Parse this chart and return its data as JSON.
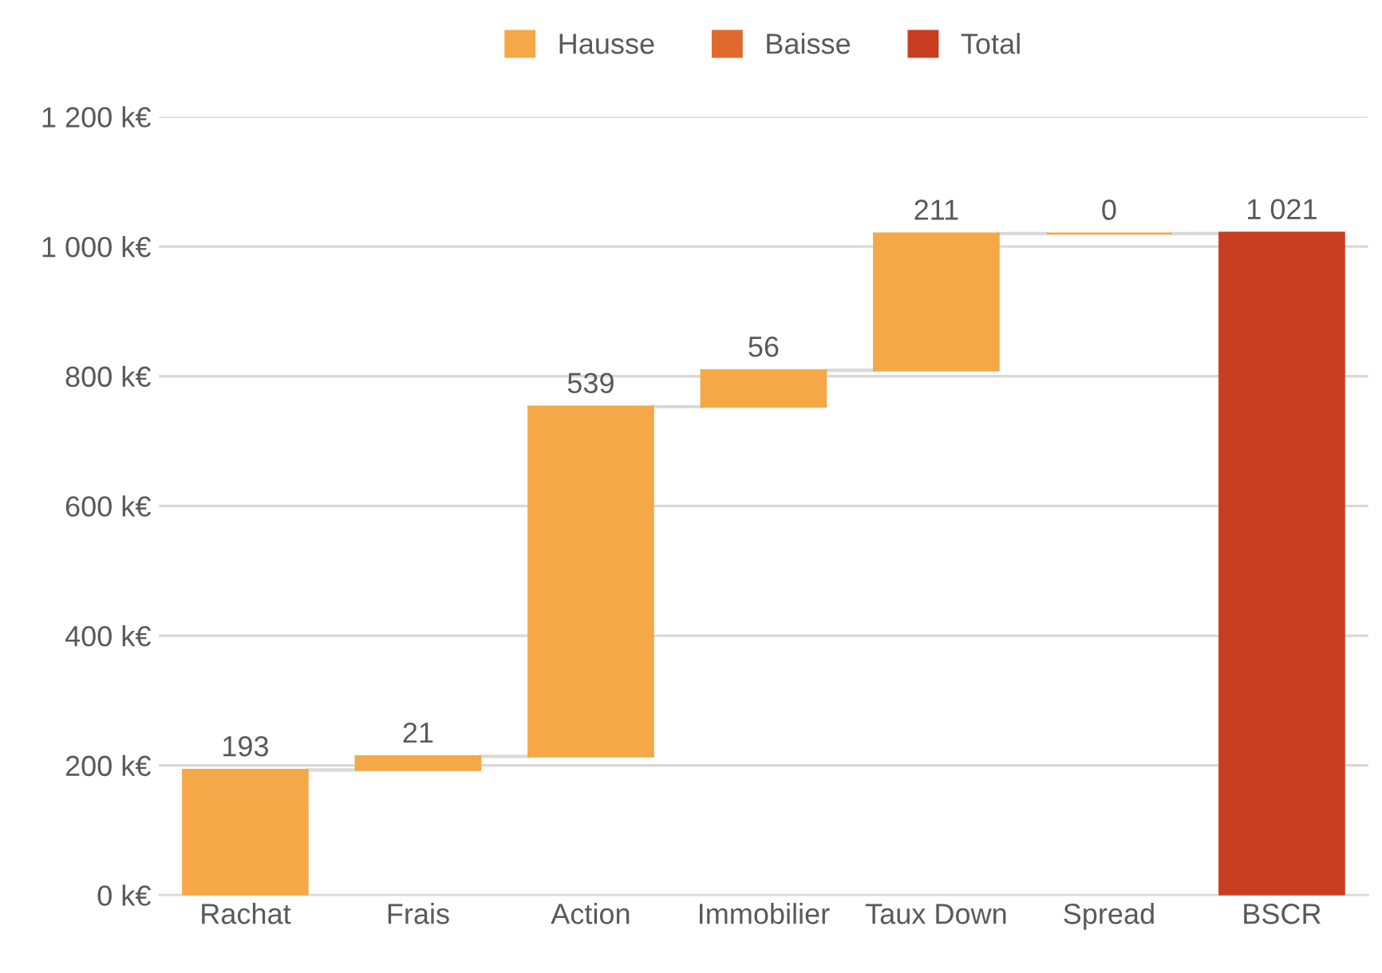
{
  "chart_data": {
    "type": "bar",
    "categories": [
      "Rachat",
      "Frais",
      "Action",
      "Immobilier",
      "Taux Down",
      "Spread",
      "BSCR"
    ],
    "series": [
      {
        "name": "Hausse",
        "color": "#f4a847",
        "values": [
          193,
          21,
          539,
          56,
          211,
          0,
          null
        ],
        "base": [
          0,
          193,
          214,
          753,
          809,
          1020,
          null
        ],
        "value_labels": [
          "193",
          "21",
          "539",
          "56",
          "211",
          "0",
          null
        ]
      },
      {
        "name": "Baisse",
        "color": "#e06a2e",
        "values": [
          null,
          null,
          null,
          null,
          null,
          null,
          null
        ]
      },
      {
        "name": "Total",
        "color": "#c93e22",
        "values": [
          null,
          null,
          null,
          null,
          null,
          null,
          1021
        ],
        "base": [
          null,
          null,
          null,
          null,
          null,
          null,
          0
        ],
        "value_labels": [
          null,
          null,
          null,
          null,
          null,
          null,
          "1 021"
        ]
      }
    ],
    "ylim": [
      0,
      1200
    ],
    "yticks": [
      {
        "value": 0,
        "label": "0 k€"
      },
      {
        "value": 200,
        "label": "200 k€"
      },
      {
        "value": 400,
        "label": "400 k€"
      },
      {
        "value": 600,
        "label": "600 k€"
      },
      {
        "value": 800,
        "label": "800 k€"
      },
      {
        "value": 1000,
        "label": "1 000 k€"
      },
      {
        "value": 1200,
        "label": "1 200 k€"
      }
    ],
    "grid": "y",
    "legend": "top"
  }
}
